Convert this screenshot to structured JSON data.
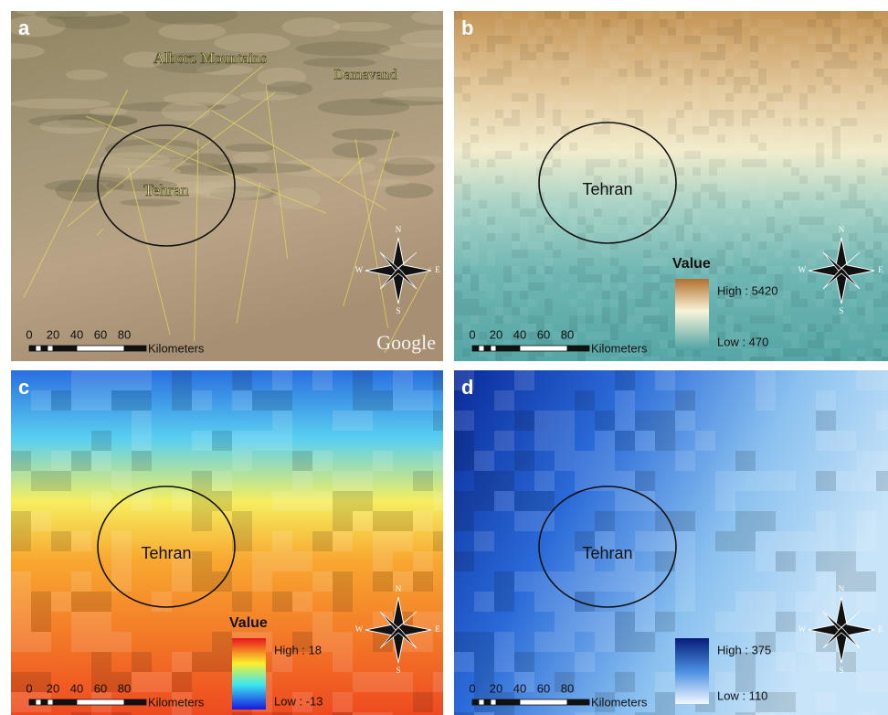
{
  "panels": [
    {
      "label": "a",
      "place_labels": [
        "Alborz Mountains",
        "Damavand",
        "Tehran"
      ],
      "compass": [
        "N",
        "S",
        "E",
        "W"
      ],
      "scale": {
        "ticks": [
          "0",
          "20",
          "40",
          "60",
          "80"
        ],
        "unit": "Kilometers"
      },
      "credit": "Google"
    },
    {
      "label": "b",
      "place_labels": [
        "Tehran"
      ],
      "compass": [
        "N",
        "S",
        "E",
        "W"
      ],
      "scale": {
        "ticks": [
          "0",
          "20",
          "40",
          "60",
          "80"
        ],
        "unit": "Kilometers"
      },
      "legend": {
        "title": "Value",
        "high": "High : 5420",
        "low": "Low : 470"
      }
    },
    {
      "label": "c",
      "place_labels": [
        "Tehran"
      ],
      "compass": [
        "N",
        "S",
        "E",
        "W"
      ],
      "scale": {
        "ticks": [
          "0",
          "20",
          "40",
          "60",
          "80"
        ],
        "unit": "Kilometers"
      },
      "legend": {
        "title": "Value",
        "high": "High : 18",
        "low": "Low : -13"
      }
    },
    {
      "label": "d",
      "place_labels": [
        "Tehran"
      ],
      "compass": [
        "N",
        "S",
        "E",
        "W"
      ],
      "scale": {
        "ticks": [
          "0",
          "20",
          "40",
          "60",
          "80"
        ],
        "unit": "Kilometers"
      },
      "legend": {
        "high": "High : 375",
        "low": "Low : 110"
      }
    }
  ]
}
